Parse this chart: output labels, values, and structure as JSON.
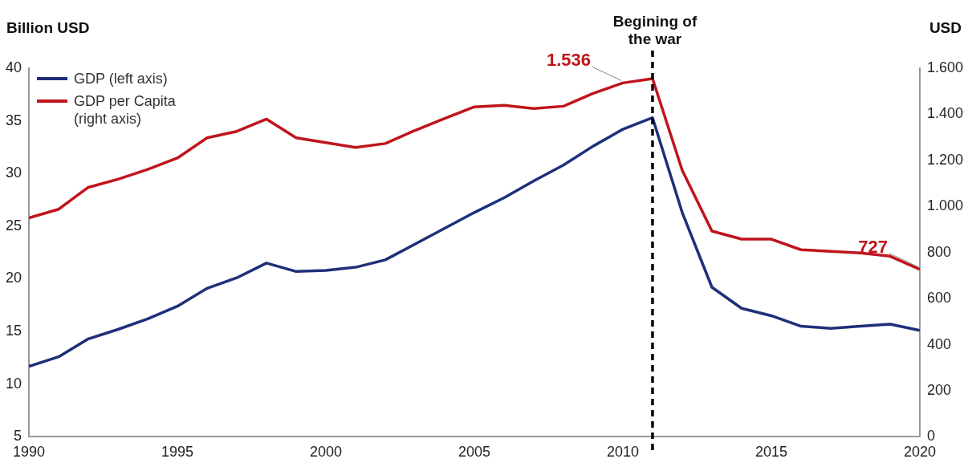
{
  "chart_data": {
    "type": "line",
    "ylabel": "Billion USD",
    "y2label": "USD",
    "x": [
      1990,
      1991,
      1992,
      1993,
      1994,
      1995,
      1996,
      1997,
      1998,
      1999,
      2000,
      2001,
      2002,
      2003,
      2004,
      2005,
      2006,
      2007,
      2008,
      2009,
      2010,
      2011,
      2012,
      2013,
      2014,
      2015,
      2016,
      2017,
      2018,
      2019,
      2020
    ],
    "xlim": [
      1990,
      2020
    ],
    "xticks": [
      1990,
      1995,
      2000,
      2005,
      2010,
      2015,
      2020
    ],
    "ylim": [
      5,
      40
    ],
    "yticks": [
      5,
      10,
      15,
      20,
      25,
      30,
      35,
      40
    ],
    "y2lim": [
      0,
      1600
    ],
    "y2ticks": [
      0,
      200,
      400,
      600,
      800,
      {
        "value": 1000,
        "label": "1.000"
      },
      {
        "value": 1200,
        "label": "1.200"
      },
      {
        "value": 1400,
        "label": "1.400"
      },
      {
        "value": 1600,
        "label": "1.600"
      }
    ],
    "series": [
      {
        "name": "GDP (left axis)",
        "color": "#1f2f7a",
        "values": [
          11.7,
          12.6,
          14.3,
          15.2,
          16.2,
          17.4,
          19.1,
          20.1,
          21.5,
          20.7,
          20.8,
          21.1,
          21.8,
          23.3,
          24.8,
          26.3,
          27.7,
          29.3,
          30.8,
          32.6,
          34.2,
          35.3,
          26.3,
          19.2,
          17.2,
          16.5,
          15.5,
          15.3,
          15.5,
          15.7,
          15.1
        ]
      },
      {
        "name": "GDP per Capita (right axis)",
        "color": "#c0141c",
        "axis": "y2",
        "values": [
          950,
          988,
          1083,
          1118,
          1161,
          1210,
          1298,
          1326,
          1379,
          1298,
          1277,
          1256,
          1273,
          1330,
          1382,
          1432,
          1439,
          1425,
          1435,
          1491,
          1536,
          1555,
          1157,
          893,
          858,
          858,
          812,
          805,
          798,
          784,
          727
        ],
        "value_labels": [
          null,
          null,
          null,
          null,
          null,
          null,
          null,
          null,
          null,
          null,
          null,
          null,
          null,
          null,
          null,
          null,
          null,
          null,
          null,
          null,
          "1.536",
          null,
          null,
          null,
          null,
          null,
          null,
          null,
          null,
          null,
          "727"
        ]
      }
    ],
    "ref_lines": [
      {
        "axis": "x",
        "value": 2011,
        "label": "Begining of the war",
        "color": "#000000",
        "line_style": "dashed"
      }
    ],
    "legend": "top left",
    "grid": false,
    "marker": "none",
    "line_style": "solid"
  }
}
